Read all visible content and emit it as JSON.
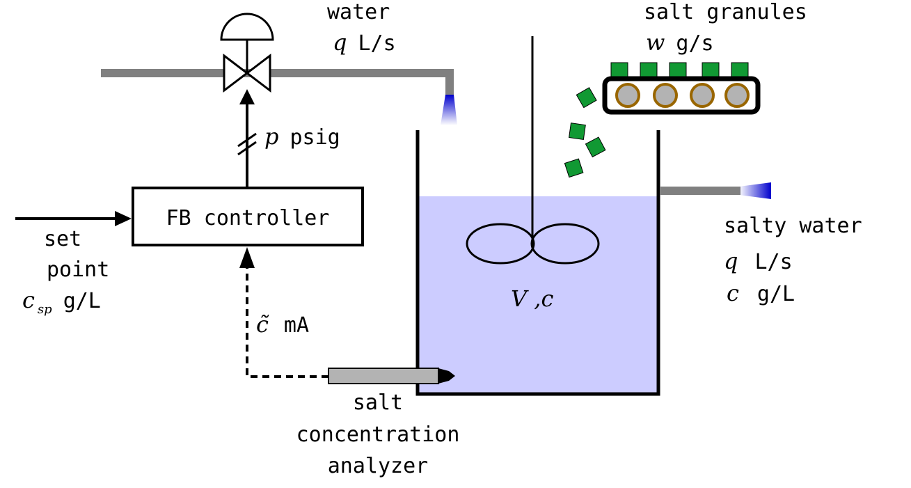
{
  "labels": {
    "water": "water",
    "water_flow_var": "q",
    "water_flow_unit": "L/s",
    "salt_granules": "salt granules",
    "salt_flow_var": "w",
    "salt_flow_unit": "g/s",
    "pressure_var": "p",
    "pressure_unit": "psig",
    "controller": "FB controller",
    "setpoint_line1": "set",
    "setpoint_line2": "point",
    "setpoint_var": "c",
    "setpoint_sub": "sp",
    "setpoint_unit": "g/L",
    "measurement_var": "c̃",
    "measurement_unit": "mA",
    "analyzer_line1": "salt",
    "analyzer_line2": "concentration",
    "analyzer_line3": "analyzer",
    "tank_label": "V ,c",
    "outlet_name": "salty water",
    "outlet_flow_var": "q",
    "outlet_flow_unit": "L/s",
    "outlet_conc_var": "c",
    "outlet_conc_unit": "g/L"
  },
  "colors": {
    "pipe": "#808080",
    "liquid": "#ccccff",
    "nozzle": "#0000cc",
    "granule": "#119933",
    "roller_fill": "#b3b3b3",
    "roller_ring": "#996600",
    "analyzer_body": "#b3b3b3"
  }
}
